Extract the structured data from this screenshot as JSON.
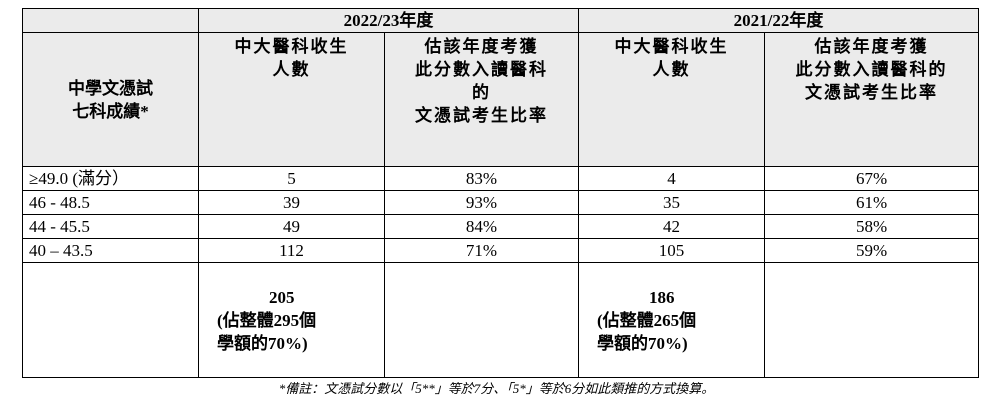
{
  "table": {
    "group_headers": [
      "2022/23年度",
      "2021/22年度"
    ],
    "row_header": [
      "中學文憑試",
      "七科成績*"
    ],
    "column_headers": [
      [
        "中大醫科收生",
        "人數"
      ],
      [
        "估該年度考獲",
        "此分數入讀醫科",
        "的",
        "文憑試考生比率"
      ],
      [
        "中大醫科收生",
        "人數"
      ],
      [
        "估該年度考獲",
        "此分數入讀醫科的",
        "文憑試考生比率"
      ]
    ],
    "rows": [
      [
        "≥49.0 (滿分）",
        "5",
        "83%",
        "4",
        "67%"
      ],
      [
        "46 - 48.5",
        "39",
        "93%",
        "35",
        "61%"
      ],
      [
        "44 - 45.5",
        "49",
        "84%",
        "42",
        "58%"
      ],
      [
        "40 – 43.5",
        "112",
        "71%",
        "105",
        "59%"
      ]
    ],
    "totals": [
      [
        "205",
        "(佔整體295個",
        "學額的70%)"
      ],
      [
        "186",
        "(佔整體265個",
        "學額的70%)"
      ]
    ]
  },
  "footnote": "*備註：文憑試分數以「5**」等於7分、「5*」等於6分如此類推的方式換算。"
}
